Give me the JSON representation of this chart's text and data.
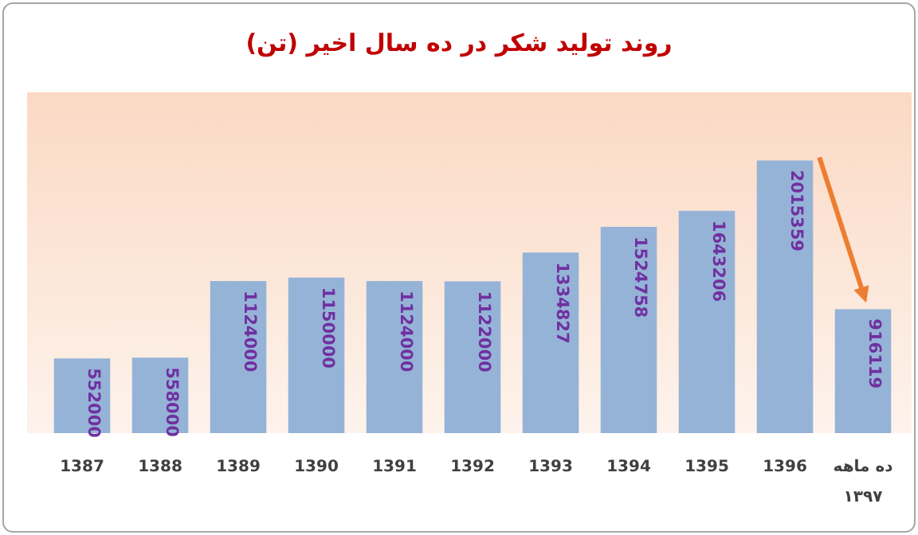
{
  "chart_data": {
    "type": "bar",
    "title": "روند تولید شکر در ده سال اخیر (تن)",
    "categories": [
      "1387",
      "1388",
      "1389",
      "1390",
      "1391",
      "1392",
      "1393",
      "1394",
      "1395",
      "1396",
      "ده ماهه\n۱۳۹۷"
    ],
    "values": [
      552000,
      558000,
      1124000,
      1150000,
      1124000,
      1122000,
      1334827,
      1524758,
      1643206,
      2015359,
      916119
    ],
    "color": "#95b3d7",
    "data_labels": true
  }
}
